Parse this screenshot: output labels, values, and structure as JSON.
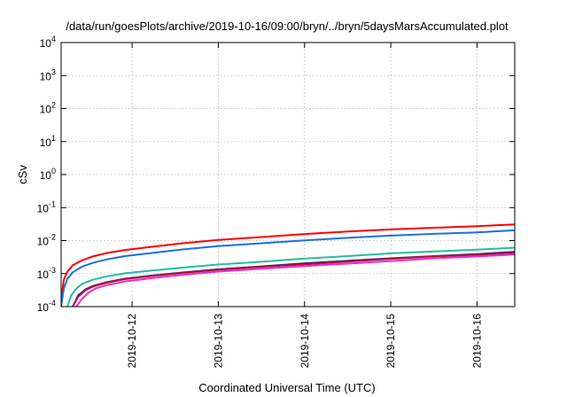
{
  "chart_data": {
    "type": "line",
    "title": "/data/run/goesPlots/archive/2019-10-16/09:00/bryn/../bryn/5daysMarsAccumulated.plot",
    "xlabel": "Coordinated Universal Time (UTC)",
    "ylabel": "cSv",
    "x_type": "datetime",
    "xlim": [
      "2019-10-11 04:15",
      "2019-10-16 10:30"
    ],
    "x_ticks": [
      "2019-10-12",
      "2019-10-13",
      "2019-10-14",
      "2019-10-15",
      "2019-10-16"
    ],
    "y_scale": "log",
    "ylim": [
      0.0001,
      10000
    ],
    "y_ticks": [
      {
        "base": "10",
        "exp": "4",
        "value": 10000
      },
      {
        "base": "10",
        "exp": "3",
        "value": 1000
      },
      {
        "base": "10",
        "exp": "2",
        "value": 100
      },
      {
        "base": "10",
        "exp": "1",
        "value": 10
      },
      {
        "base": "10",
        "exp": "0",
        "value": 1
      },
      {
        "base": "10",
        "exp": "-1",
        "value": 0.1
      },
      {
        "base": "10",
        "exp": "-2",
        "value": 0.01
      },
      {
        "base": "10",
        "exp": "-3",
        "value": 0.001
      },
      {
        "base": "10",
        "exp": "-4",
        "value": 0.0001
      }
    ],
    "grid": true,
    "legend": "none",
    "series": [
      {
        "color": "#ff0000",
        "points": [
          [
            "2019-10-11 04:15",
            0.00016
          ],
          [
            "2019-10-11 05:00",
            0.00065
          ],
          [
            "2019-10-11 06:00",
            0.00115
          ],
          [
            "2019-10-11 07:30",
            0.0018
          ],
          [
            "2019-10-11 10:00",
            0.0025
          ],
          [
            "2019-10-11 13:00",
            0.0033
          ],
          [
            "2019-10-11 17:00",
            0.0042
          ],
          [
            "2019-10-11 22:00",
            0.0052
          ],
          [
            "2019-10-12 06:00",
            0.0066
          ],
          [
            "2019-10-12 14:00",
            0.0083
          ],
          [
            "2019-10-13 00:00",
            0.0105
          ],
          [
            "2019-10-13 12:00",
            0.0128
          ],
          [
            "2019-10-14 00:00",
            0.0158
          ],
          [
            "2019-10-14 12:00",
            0.0188
          ],
          [
            "2019-10-15 00:00",
            0.0218
          ],
          [
            "2019-10-15 12:00",
            0.0245
          ],
          [
            "2019-10-16 00:00",
            0.0272
          ],
          [
            "2019-10-16 10:30",
            0.031
          ]
        ]
      },
      {
        "color": "#1a6fe0",
        "points": [
          [
            "2019-10-11 04:15",
            0.0001
          ],
          [
            "2019-10-11 05:00",
            0.00035
          ],
          [
            "2019-10-11 06:00",
            0.0007
          ],
          [
            "2019-10-11 07:30",
            0.0011
          ],
          [
            "2019-10-11 10:00",
            0.0016
          ],
          [
            "2019-10-11 13:00",
            0.0021
          ],
          [
            "2019-10-11 17:00",
            0.0027
          ],
          [
            "2019-10-11 22:00",
            0.0034
          ],
          [
            "2019-10-12 06:00",
            0.0043
          ],
          [
            "2019-10-12 14:00",
            0.0054
          ],
          [
            "2019-10-13 00:00",
            0.0068
          ],
          [
            "2019-10-13 12:00",
            0.0083
          ],
          [
            "2019-10-14 00:00",
            0.0102
          ],
          [
            "2019-10-14 12:00",
            0.0121
          ],
          [
            "2019-10-15 00:00",
            0.0141
          ],
          [
            "2019-10-15 12:00",
            0.016
          ],
          [
            "2019-10-16 00:00",
            0.0178
          ],
          [
            "2019-10-16 10:30",
            0.0205
          ]
        ]
      },
      {
        "color": "#22c09a",
        "points": [
          [
            "2019-10-11 06:00",
            0.0001
          ],
          [
            "2019-10-11 07:00",
            0.00022
          ],
          [
            "2019-10-11 08:30",
            0.00035
          ],
          [
            "2019-10-11 10:00",
            0.00048
          ],
          [
            "2019-10-11 13:00",
            0.00065
          ],
          [
            "2019-10-11 17:00",
            0.00083
          ],
          [
            "2019-10-11 22:00",
            0.00102
          ],
          [
            "2019-10-12 06:00",
            0.00125
          ],
          [
            "2019-10-12 14:00",
            0.00152
          ],
          [
            "2019-10-13 00:00",
            0.00188
          ],
          [
            "2019-10-13 12:00",
            0.00228
          ],
          [
            "2019-10-14 00:00",
            0.00285
          ],
          [
            "2019-10-14 12:00",
            0.0034
          ],
          [
            "2019-10-15 00:00",
            0.0041
          ],
          [
            "2019-10-15 12:00",
            0.0047
          ],
          [
            "2019-10-16 00:00",
            0.0053
          ],
          [
            "2019-10-16 10:30",
            0.0061
          ]
        ]
      },
      {
        "color": "#3a1f7a",
        "points": [
          [
            "2019-10-11 07:30",
            0.0001
          ],
          [
            "2019-10-11 09:00",
            0.00022
          ],
          [
            "2019-10-11 11:00",
            0.00033
          ],
          [
            "2019-10-11 13:00",
            0.00042
          ],
          [
            "2019-10-11 17:00",
            0.00055
          ],
          [
            "2019-10-11 22:00",
            0.0007
          ],
          [
            "2019-10-12 06:00",
            0.00088
          ],
          [
            "2019-10-12 14:00",
            0.00108
          ],
          [
            "2019-10-13 00:00",
            0.00135
          ],
          [
            "2019-10-13 12:00",
            0.00165
          ],
          [
            "2019-10-14 00:00",
            0.00205
          ],
          [
            "2019-10-14 12:00",
            0.00245
          ],
          [
            "2019-10-15 00:00",
            0.0029
          ],
          [
            "2019-10-15 12:00",
            0.0034
          ],
          [
            "2019-10-16 00:00",
            0.0039
          ],
          [
            "2019-10-16 10:30",
            0.0046
          ]
        ]
      },
      {
        "color": "#b5123f",
        "points": [
          [
            "2019-10-11 07:30",
            0.0001
          ],
          [
            "2019-10-11 09:00",
            0.0002
          ],
          [
            "2019-10-11 11:00",
            0.00031
          ],
          [
            "2019-10-11 13:00",
            0.0004
          ],
          [
            "2019-10-11 17:00",
            0.00053
          ],
          [
            "2019-10-11 22:00",
            0.00068
          ],
          [
            "2019-10-12 06:00",
            0.00086
          ],
          [
            "2019-10-12 14:00",
            0.00105
          ],
          [
            "2019-10-13 00:00",
            0.0013
          ],
          [
            "2019-10-13 12:00",
            0.0016
          ],
          [
            "2019-10-14 00:00",
            0.0019
          ],
          [
            "2019-10-14 12:00",
            0.0023
          ],
          [
            "2019-10-15 00:00",
            0.0028
          ],
          [
            "2019-10-15 12:00",
            0.0033
          ],
          [
            "2019-10-16 00:00",
            0.0037
          ],
          [
            "2019-10-16 10:30",
            0.0043
          ]
        ]
      },
      {
        "color": "#e62fc8",
        "points": [
          [
            "2019-10-11 08:30",
            0.0001
          ],
          [
            "2019-10-11 10:00",
            0.00017
          ],
          [
            "2019-10-11 12:00",
            0.00027
          ],
          [
            "2019-10-11 14:00",
            0.00036
          ],
          [
            "2019-10-11 17:00",
            0.00045
          ],
          [
            "2019-10-11 22:00",
            0.00058
          ],
          [
            "2019-10-12 06:00",
            0.00074
          ],
          [
            "2019-10-12 14:00",
            0.00092
          ],
          [
            "2019-10-13 00:00",
            0.00115
          ],
          [
            "2019-10-13 12:00",
            0.0014
          ],
          [
            "2019-10-14 00:00",
            0.0017
          ],
          [
            "2019-10-14 12:00",
            0.002
          ],
          [
            "2019-10-15 00:00",
            0.0024
          ],
          [
            "2019-10-15 12:00",
            0.0029
          ],
          [
            "2019-10-16 00:00",
            0.0033
          ],
          [
            "2019-10-16 10:30",
            0.0038
          ]
        ]
      }
    ]
  }
}
